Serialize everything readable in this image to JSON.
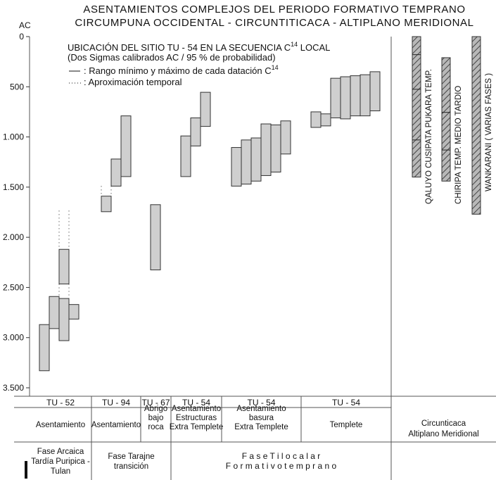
{
  "chart_data": {
    "type": "range-bar",
    "title": [
      "ASENTAMIENTOS COMPLEJOS DEL PERIODO FORMATIVO TEMPRANO",
      "CIRCUMPUNA OCCIDENTAL - CIRCUNTITICACA - ALTIPLANO MERIDIONAL"
    ],
    "y_label": "AC",
    "ylim": [
      0,
      3500
    ],
    "yticks": [
      0,
      500,
      {
        "value": 1000,
        "label": "1.000"
      },
      {
        "value": 1500,
        "label": "1.500"
      },
      {
        "value": 2000,
        "label": "2.000"
      },
      {
        "value": 2500,
        "label": "2.500"
      },
      {
        "value": 3000,
        "label": "3.000"
      },
      {
        "value": 3500,
        "label": "3.500"
      }
    ],
    "annotation": {
      "heading": [
        "UBICACIÓN  DEL SITIO TU - 54  EN LA SECUENCIA  C",
        "14",
        " LOCAL"
      ],
      "sub": "(Dos Sigmas calibrados  AC / 95 % de probabilidad)",
      "range_note": [
        ": Rango mínimo y máximo de cada datación C",
        "14"
      ],
      "approx_note": ": Aproximación temporal"
    },
    "bar_color": "#cfcfcf",
    "groups": [
      {
        "site": "TU - 52",
        "context": [
          "Asentamiento"
        ],
        "columns": [
          {
            "ranges": [
              [
                2870,
                3330
              ]
            ]
          },
          {
            "ranges": [
              [
                2590,
                2910
              ]
            ]
          },
          {
            "ranges": [
              [
                2120,
                2465
              ],
              [
                2610,
                3030
              ]
            ],
            "approx": [
              [
                1735,
                2120
              ],
              [
                2465,
                2610
              ]
            ]
          },
          {
            "ranges": [
              [
                2670,
                2815
              ]
            ]
          }
        ]
      },
      {
        "site": "TU - 94",
        "context": [
          "Asentamiento"
        ],
        "columns": [
          {
            "ranges": [
              [
                1590,
                1745
              ]
            ],
            "approx": [
              [
                1490,
                1590
              ]
            ]
          },
          {
            "ranges": [
              [
                1220,
                1490
              ]
            ]
          },
          {
            "ranges": [
              [
                790,
                1395
              ]
            ]
          }
        ]
      },
      {
        "site": "TU - 67",
        "context": [
          "Abrigo",
          "bajo",
          "roca"
        ],
        "columns": [
          {
            "ranges": [
              [
                1675,
                2325
              ]
            ]
          }
        ]
      },
      {
        "site": "TU - 54",
        "context": [
          "Asentamiento",
          "Estructuras",
          "Extra Templete"
        ],
        "columns": [
          {
            "ranges": [
              [
                990,
                1395
              ]
            ]
          },
          {
            "ranges": [
              [
                810,
                1090
              ]
            ]
          },
          {
            "ranges": [
              [
                555,
                895
              ]
            ]
          }
        ]
      },
      {
        "site": "TU - 54",
        "context": [
          "Asentamiento",
          "basura",
          "Extra Templete"
        ],
        "columns": [
          {
            "ranges": [
              [
                1105,
                1490
              ]
            ]
          },
          {
            "ranges": [
              [
                1030,
                1470
              ]
            ]
          },
          {
            "ranges": [
              [
                1010,
                1440
              ]
            ]
          },
          {
            "ranges": [
              [
                870,
                1385
              ]
            ]
          },
          {
            "ranges": [
              [
                880,
                1350
              ]
            ]
          },
          {
            "ranges": [
              [
                840,
                1170
              ]
            ]
          }
        ]
      },
      {
        "site": "TU - 54",
        "context": [
          "Templete"
        ],
        "columns": [
          {
            "ranges": [
              [
                750,
                905
              ]
            ]
          },
          {
            "ranges": [
              [
                770,
                890
              ]
            ]
          },
          {
            "ranges": [
              [
                415,
                810
              ]
            ]
          },
          {
            "ranges": [
              [
                400,
                820
              ]
            ]
          },
          {
            "ranges": [
              [
                390,
                790
              ]
            ]
          },
          {
            "ranges": [
              [
                380,
                790
              ]
            ]
          },
          {
            "ranges": [
              [
                350,
                740
              ]
            ]
          }
        ]
      }
    ],
    "phases": [
      [
        "Fase Arcaica",
        "Tardía Puripica -",
        "Tulan"
      ],
      [
        "Fase  Tarajne",
        "transición"
      ],
      [
        "F a s e   T i l o c a l a r",
        "F o r m a t i v o   t e m p r a n o"
      ]
    ],
    "region": {
      "label": [
        "Circunticaca",
        "Altiplano Meridional"
      ],
      "sequences": [
        {
          "name": "QALUYO CUSIPATA PUKARA TEMP.",
          "range": [
            0,
            1400
          ],
          "divisions": [
            180,
            525,
            1030
          ]
        },
        {
          "name": "CHIRIPA TEMP.  MEDIO   TARDIO",
          "range": [
            210,
            1440
          ],
          "divisions": [
            755,
            1130
          ]
        },
        {
          "name": "WANKARANI   ( VARIAS  FASES )",
          "range": [
            0,
            1770
          ],
          "divisions": []
        }
      ]
    }
  }
}
